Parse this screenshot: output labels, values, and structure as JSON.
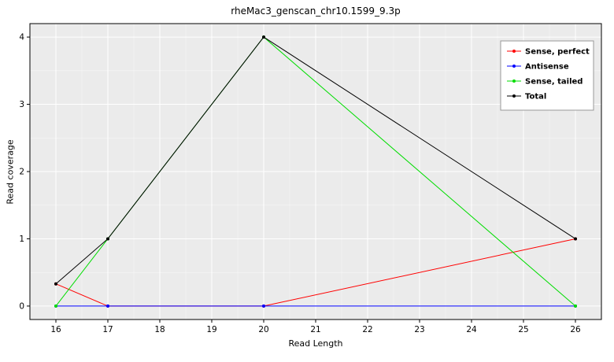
{
  "chart_data": {
    "type": "line",
    "title": "rheMac3_genscan_chr10.1599_9.3p",
    "xlabel": "Read Length",
    "ylabel": "Read coverage",
    "x": [
      16,
      17,
      20,
      26
    ],
    "series": [
      {
        "name": "Sense, perfect",
        "color": "#ff0000",
        "values": [
          0.33,
          0,
          0,
          1
        ]
      },
      {
        "name": "Antisense",
        "color": "#0000ff",
        "values": [
          0,
          0,
          0,
          0
        ]
      },
      {
        "name": "Sense, tailed",
        "color": "#00dd00",
        "values": [
          0,
          1,
          4,
          0
        ]
      },
      {
        "name": "Total",
        "color": "#000000",
        "values": [
          0.33,
          1,
          4,
          1
        ]
      }
    ],
    "x_ticks": [
      16,
      17,
      18,
      19,
      20,
      21,
      22,
      23,
      24,
      25,
      26
    ],
    "y_ticks": [
      0,
      1,
      2,
      3,
      4
    ],
    "xlim": [
      15.5,
      26.5
    ],
    "ylim": [
      -0.2,
      4.2
    ],
    "grid": true,
    "legend_position": "top-right",
    "panel_bg": "#ebebeb",
    "grid_color": "#ffffff",
    "border_color": "#000000",
    "legend_border_color": "#999999",
    "legend_bg": "#ffffff"
  }
}
